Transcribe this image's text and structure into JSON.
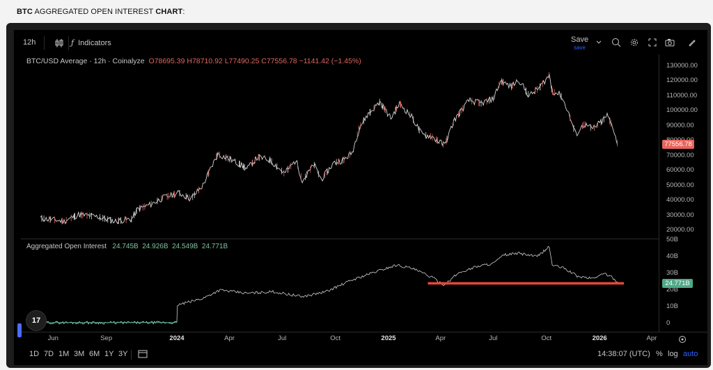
{
  "page": {
    "title_bold1": "BTC",
    "title_mid": " AGGREGATED OPEN INTEREST ",
    "title_bold2": "CHART",
    "title_end": ":"
  },
  "toolbar": {
    "interval": "12h",
    "indicators": "Indicators",
    "save": "Save",
    "save_sub": "save"
  },
  "legend_main": {
    "symbol": "BTC/USD Average · 12h · Coinalyze",
    "o": "O78695.39",
    "h": "H78710.92",
    "l": "L77490.25",
    "c": "C77556.78",
    "chg": "−1141.42 (−1.45%)"
  },
  "legend_oi": {
    "title": "Aggregated Open Interest",
    "v1": "24.745B",
    "v2": "24.926B",
    "v3": "24.549B",
    "v4": "24.771B"
  },
  "price_tag": "77556.78",
  "oi_tag": "24.771B",
  "bottom": {
    "ranges": [
      "1D",
      "7D",
      "1M",
      "3M",
      "6M",
      "1Y",
      "3Y"
    ],
    "time": "14:38:07 (UTC)",
    "pct": "%",
    "log": "log",
    "auto": "auto"
  },
  "logo": "17",
  "chart_data": [
    {
      "type": "line",
      "title": "BTC/USD Average · 12h · Coinalyze",
      "y_ticks": [
        "130000.00",
        "120000.00",
        "110000.00",
        "100000.00",
        "90000.00",
        "80000.00",
        "70000.00",
        "60000.00",
        "50000.00",
        "40000.00",
        "30000.00",
        "20000.00"
      ],
      "ylim": [
        20000,
        130000
      ],
      "x_ticks": [
        "Jun",
        "Sep",
        "2024",
        "Apr",
        "Jul",
        "Oct",
        "2025",
        "Apr",
        "Jul",
        "Oct",
        "2026",
        "Apr"
      ],
      "series": [
        {
          "name": "BTC/USD Average",
          "x": [
            "2023-05-10",
            "2023-06-01",
            "2023-06-20",
            "2023-07-15",
            "2023-08-17",
            "2023-09-15",
            "2023-10-15",
            "2023-10-25",
            "2023-11-15",
            "2023-12-10",
            "2024-01-05",
            "2024-01-25",
            "2024-02-15",
            "2024-02-28",
            "2024-03-12",
            "2024-04-05",
            "2024-04-20",
            "2024-05-01",
            "2024-05-20",
            "2024-06-10",
            "2024-07-05",
            "2024-07-25",
            "2024-08-05",
            "2024-08-25",
            "2024-09-07",
            "2024-09-28",
            "2024-10-15",
            "2024-10-30",
            "2024-11-12",
            "2024-11-25",
            "2024-12-17",
            "2025-01-05",
            "2025-01-20",
            "2025-02-10",
            "2025-02-28",
            "2025-03-15",
            "2025-04-08",
            "2025-04-25",
            "2025-05-20",
            "2025-06-10",
            "2025-07-01",
            "2025-07-14",
            "2025-08-01",
            "2025-08-14",
            "2025-09-01",
            "2025-09-20",
            "2025-10-06",
            "2025-10-11",
            "2025-10-25",
            "2025-11-05",
            "2025-11-21",
            "2025-12-05",
            "2025-12-20",
            "2026-01-05",
            "2026-01-14",
            "2026-01-25",
            "2026-02-01"
          ],
          "y": [
            28000,
            27000,
            26000,
            30500,
            29000,
            26000,
            27500,
            34000,
            37000,
            42000,
            45000,
            41000,
            50000,
            61000,
            71000,
            67000,
            64000,
            61000,
            69000,
            67000,
            58000,
            67000,
            53000,
            64000,
            54000,
            65000,
            67000,
            72000,
            89000,
            97000,
            106000,
            95000,
            105000,
            96000,
            84000,
            83000,
            77000,
            94000,
            107000,
            105000,
            108000,
            120000,
            116000,
            121000,
            110000,
            116000,
            124000,
            113000,
            111000,
            102000,
            84000,
            91000,
            88000,
            93000,
            97000,
            88000,
            77557
          ]
        }
      ]
    },
    {
      "type": "line",
      "title": "Aggregated Open Interest",
      "y_ticks": [
        "50B",
        "40B",
        "30B",
        "20B",
        "10B",
        "0"
      ],
      "ylim": [
        0,
        50
      ],
      "series": [
        {
          "name": "Aggregated Open Interest",
          "x": [
            "2023-05-10",
            "2023-09-01",
            "2024-01-01",
            "2024-01-02",
            "2024-02-15",
            "2024-03-15",
            "2024-05-01",
            "2024-06-15",
            "2024-08-05",
            "2024-09-15",
            "2024-10-30",
            "2024-12-10",
            "2025-01-15",
            "2025-02-10",
            "2025-03-15",
            "2025-04-08",
            "2025-05-01",
            "2025-06-01",
            "2025-07-01",
            "2025-07-20",
            "2025-08-15",
            "2025-09-15",
            "2025-10-06",
            "2025-10-11",
            "2025-11-01",
            "2025-11-25",
            "2025-12-20",
            "2026-01-10",
            "2026-01-25",
            "2026-02-01"
          ],
          "y": [
            0.5,
            0.4,
            0.5,
            11,
            15,
            20,
            18,
            19,
            16,
            19,
            26,
            31,
            35,
            33,
            28,
            23,
            30,
            34,
            36,
            41,
            42,
            40,
            46,
            35,
            33,
            28,
            27,
            30,
            27,
            24.771
          ]
        }
      ]
    }
  ]
}
